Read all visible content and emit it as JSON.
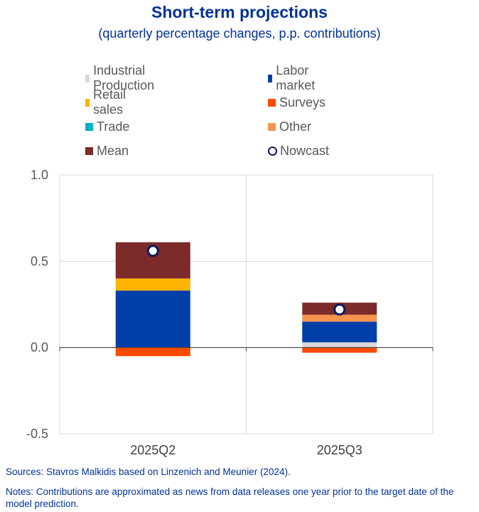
{
  "title": "Short-term projections",
  "subtitle": "(quarterly percentage changes, p.p. contributions)",
  "colors": {
    "industrial_production": "#d9d9d9",
    "labor_market": "#003fa8",
    "retail_sales": "#ffb400",
    "surveys": "#ff4b00",
    "trade": "#00b1c8",
    "other": "#f4944d",
    "mean": "#7c2a2a",
    "nowcast": "#0b1b5c",
    "title": "#003299"
  },
  "legend": [
    {
      "key": "industrial_production",
      "label": "Industrial Production",
      "kind": "square"
    },
    {
      "key": "labor_market",
      "label": "Labor market",
      "kind": "square"
    },
    {
      "key": "retail_sales",
      "label": "Retail sales",
      "kind": "square"
    },
    {
      "key": "surveys",
      "label": "Surveys",
      "kind": "square"
    },
    {
      "key": "trade",
      "label": "Trade",
      "kind": "square"
    },
    {
      "key": "other",
      "label": "Other",
      "kind": "square"
    },
    {
      "key": "mean",
      "label": "Mean",
      "kind": "square"
    },
    {
      "key": "nowcast",
      "label": "Nowcast",
      "kind": "circle"
    }
  ],
  "chart_data": {
    "type": "stacked-bar",
    "title": "Short-term projections",
    "subtitle": "(quarterly percentage changes, p.p. contributions)",
    "categories": [
      "2025Q2",
      "2025Q3"
    ],
    "ylim": [
      -0.5,
      1.0
    ],
    "yticks": [
      -0.5,
      0.0,
      0.5,
      1.0
    ],
    "ytick_labels": [
      "-0.5",
      "0.0",
      "0.5",
      "1.0"
    ],
    "grid": true,
    "series": [
      {
        "name": "Industrial Production",
        "key": "industrial_production",
        "values": [
          0.0,
          0.03
        ]
      },
      {
        "name": "Labor market",
        "key": "labor_market",
        "values": [
          0.33,
          0.12
        ]
      },
      {
        "name": "Retail sales",
        "key": "retail_sales",
        "values": [
          0.07,
          0.0
        ]
      },
      {
        "name": "Surveys",
        "key": "surveys",
        "values": [
          -0.05,
          -0.03
        ]
      },
      {
        "name": "Trade",
        "key": "trade",
        "values": [
          0.0,
          0.0
        ]
      },
      {
        "name": "Other",
        "key": "other",
        "values": [
          0.0,
          0.04
        ]
      },
      {
        "name": "Mean",
        "key": "mean",
        "values": [
          0.21,
          0.07
        ]
      }
    ],
    "nowcast": {
      "name": "Nowcast",
      "values": [
        0.56,
        0.22
      ]
    }
  },
  "footer": {
    "sources": "Sources: Stavros Malkidis based on Linzenich and Meunier (2024).",
    "notes": "Notes: Contributions are approximated as news from data releases one year prior to the target date of the model prediction."
  }
}
